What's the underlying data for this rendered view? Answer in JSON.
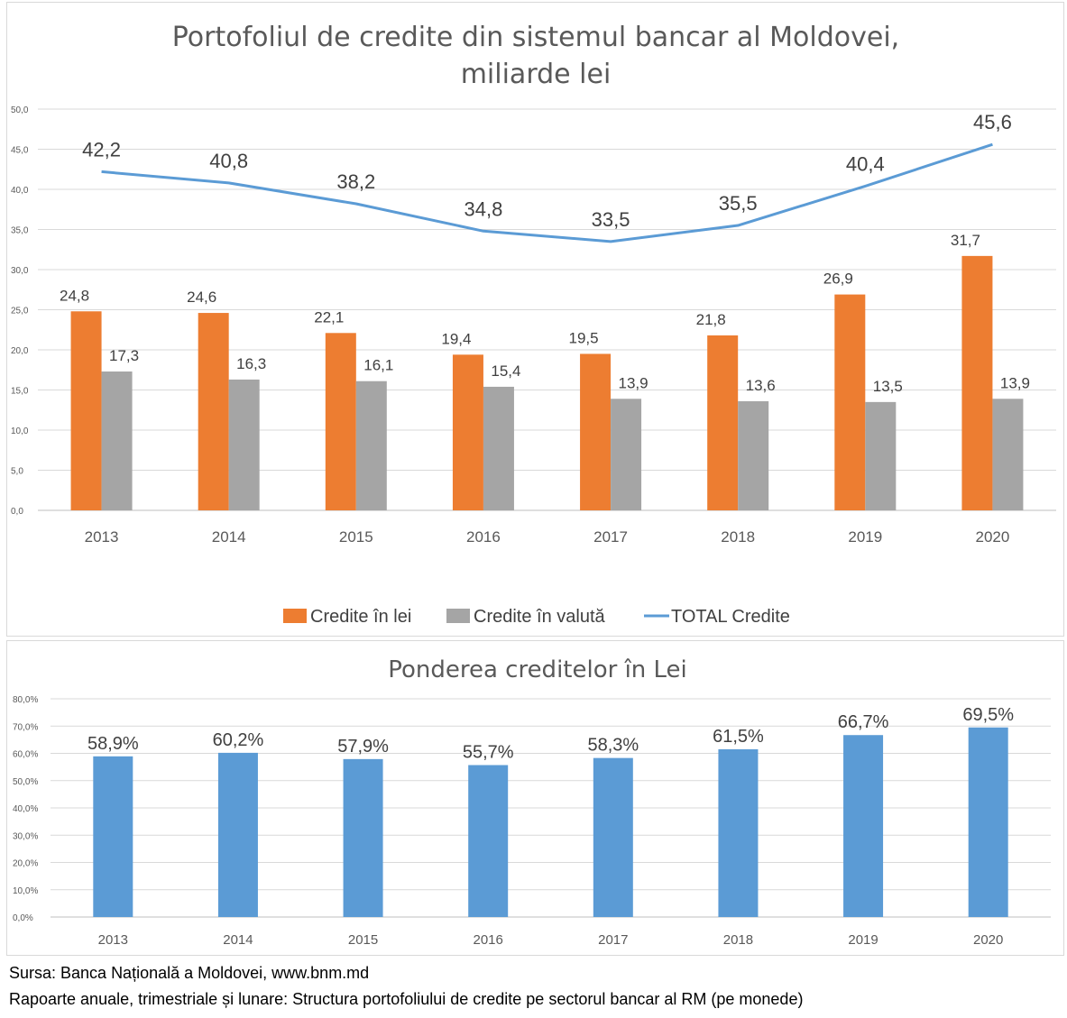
{
  "chart_data": [
    {
      "type": "bar",
      "title": "Portofoliul de credite din sistemul bancar al Moldovei,",
      "subtitle": "miliarde lei",
      "categories": [
        "2013",
        "2014",
        "2015",
        "2016",
        "2017",
        "2018",
        "2019",
        "2020"
      ],
      "series": [
        {
          "name": "Credite în lei",
          "kind": "bar",
          "color": "#ED7D31",
          "values": [
            24.8,
            24.6,
            22.1,
            19.4,
            19.5,
            21.8,
            26.9,
            31.7
          ],
          "labels": [
            "24,8",
            "24,6",
            "22,1",
            "19,4",
            "19,5",
            "21,8",
            "26,9",
            "31,7"
          ]
        },
        {
          "name": "Credite în valută",
          "kind": "bar",
          "color": "#A5A5A5",
          "values": [
            17.3,
            16.3,
            16.1,
            15.4,
            13.9,
            13.6,
            13.5,
            13.9
          ],
          "labels": [
            "17,3",
            "16,3",
            "16,1",
            "15,4",
            "13,9",
            "13,6",
            "13,5",
            "13,9"
          ]
        },
        {
          "name": "TOTAL Credite",
          "kind": "line",
          "color": "#5B9BD5",
          "values": [
            42.2,
            40.8,
            38.2,
            34.8,
            33.5,
            35.5,
            40.4,
            45.6
          ],
          "labels": [
            "42,2",
            "40,8",
            "38,2",
            "34,8",
            "33,5",
            "35,5",
            "40,4",
            "45,6"
          ]
        }
      ],
      "ylim": [
        0,
        50
      ],
      "yticks": [
        "0,0",
        "5,0",
        "10,0",
        "15,0",
        "20,0",
        "25,0",
        "30,0",
        "35,0",
        "40,0",
        "45,0",
        "50,0"
      ],
      "grid": true,
      "legend": "bottom"
    },
    {
      "type": "bar",
      "title": "Ponderea creditelor în Lei",
      "categories": [
        "2013",
        "2014",
        "2015",
        "2016",
        "2017",
        "2018",
        "2019",
        "2020"
      ],
      "series": [
        {
          "name": "Ponderea creditelor în Lei",
          "kind": "bar",
          "color": "#5B9BD5",
          "values": [
            58.9,
            60.2,
            57.9,
            55.7,
            58.3,
            61.5,
            66.7,
            69.5
          ],
          "labels": [
            "58,9%",
            "60,2%",
            "57,9%",
            "55,7%",
            "58,3%",
            "61,5%",
            "66,7%",
            "69,5%"
          ]
        }
      ],
      "ylim": [
        0,
        80
      ],
      "yticks": [
        "0,0%",
        "10,0%",
        "20,0%",
        "30,0%",
        "40,0%",
        "50,0%",
        "60,0%",
        "70,0%",
        "80,0%"
      ],
      "grid": true,
      "legend": "none"
    }
  ],
  "source": {
    "line1": "Sursa: Banca Națională a Moldovei, www.bnm.md",
    "line2": "Rapoarte anuale, trimestriale și lunare: Structura portofoliului de credite pe sectorul bancar al RM (pe monede)"
  }
}
